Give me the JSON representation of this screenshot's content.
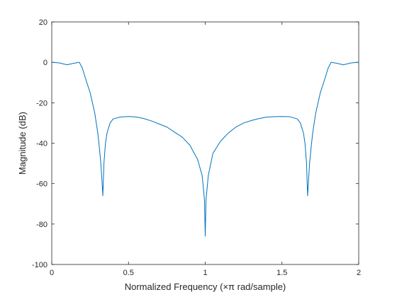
{
  "chart_data": {
    "type": "line",
    "title": "",
    "xlabel": "Normalized  Frequency  (×π  rad/sample)",
    "ylabel": "Magnitude (dB)",
    "xlim": [
      0,
      2
    ],
    "ylim": [
      -100,
      20
    ],
    "xticks": [
      0,
      0.5,
      1,
      1.5,
      2
    ],
    "xtick_labels": [
      "0",
      "0.5",
      "1",
      "1.5",
      "2"
    ],
    "yticks": [
      -100,
      -80,
      -60,
      -40,
      -20,
      0,
      20
    ],
    "ytick_labels": [
      "-100",
      "-80",
      "-60",
      "-40",
      "-20",
      "0",
      "20"
    ],
    "grid": false,
    "line_color": "#0072bd",
    "series": [
      {
        "x": [
          0,
          0.05,
          0.1,
          0.14,
          0.18,
          0.2,
          0.22,
          0.25,
          0.28,
          0.3,
          0.31,
          0.32,
          0.325,
          0.333,
          0.34,
          0.35,
          0.36,
          0.38,
          0.4,
          0.45,
          0.5,
          0.55,
          0.6,
          0.65,
          0.7,
          0.75,
          0.8,
          0.85,
          0.9,
          0.95,
          0.98,
          0.995,
          1,
          1.005,
          1.02,
          1.05,
          1.1,
          1.15,
          1.2,
          1.25,
          1.3,
          1.35,
          1.4,
          1.45,
          1.5,
          1.55,
          1.6,
          1.62,
          1.64,
          1.65,
          1.66,
          1.667,
          1.675,
          1.68,
          1.69,
          1.7,
          1.72,
          1.75,
          1.78,
          1.8,
          1.82,
          1.86,
          1.9,
          1.95,
          2
        ],
        "y": [
          0,
          -0.3,
          -1.2,
          -0.5,
          0,
          -3,
          -8,
          -15,
          -25,
          -35,
          -42,
          -50,
          -56,
          -66,
          -50,
          -40,
          -35,
          -30,
          -28,
          -27,
          -26.8,
          -27,
          -27.8,
          -29,
          -30.5,
          -32,
          -34.5,
          -37,
          -41,
          -48,
          -56,
          -68,
          -86,
          -68,
          -56,
          -45,
          -39,
          -35,
          -32,
          -30,
          -28.8,
          -27.8,
          -27.1,
          -26.9,
          -26.8,
          -26.9,
          -28,
          -30,
          -35,
          -40,
          -50,
          -66,
          -56,
          -50,
          -42,
          -35,
          -25,
          -15,
          -8,
          -3,
          0,
          -0.5,
          -1.2,
          -0.3,
          0
        ]
      }
    ]
  }
}
